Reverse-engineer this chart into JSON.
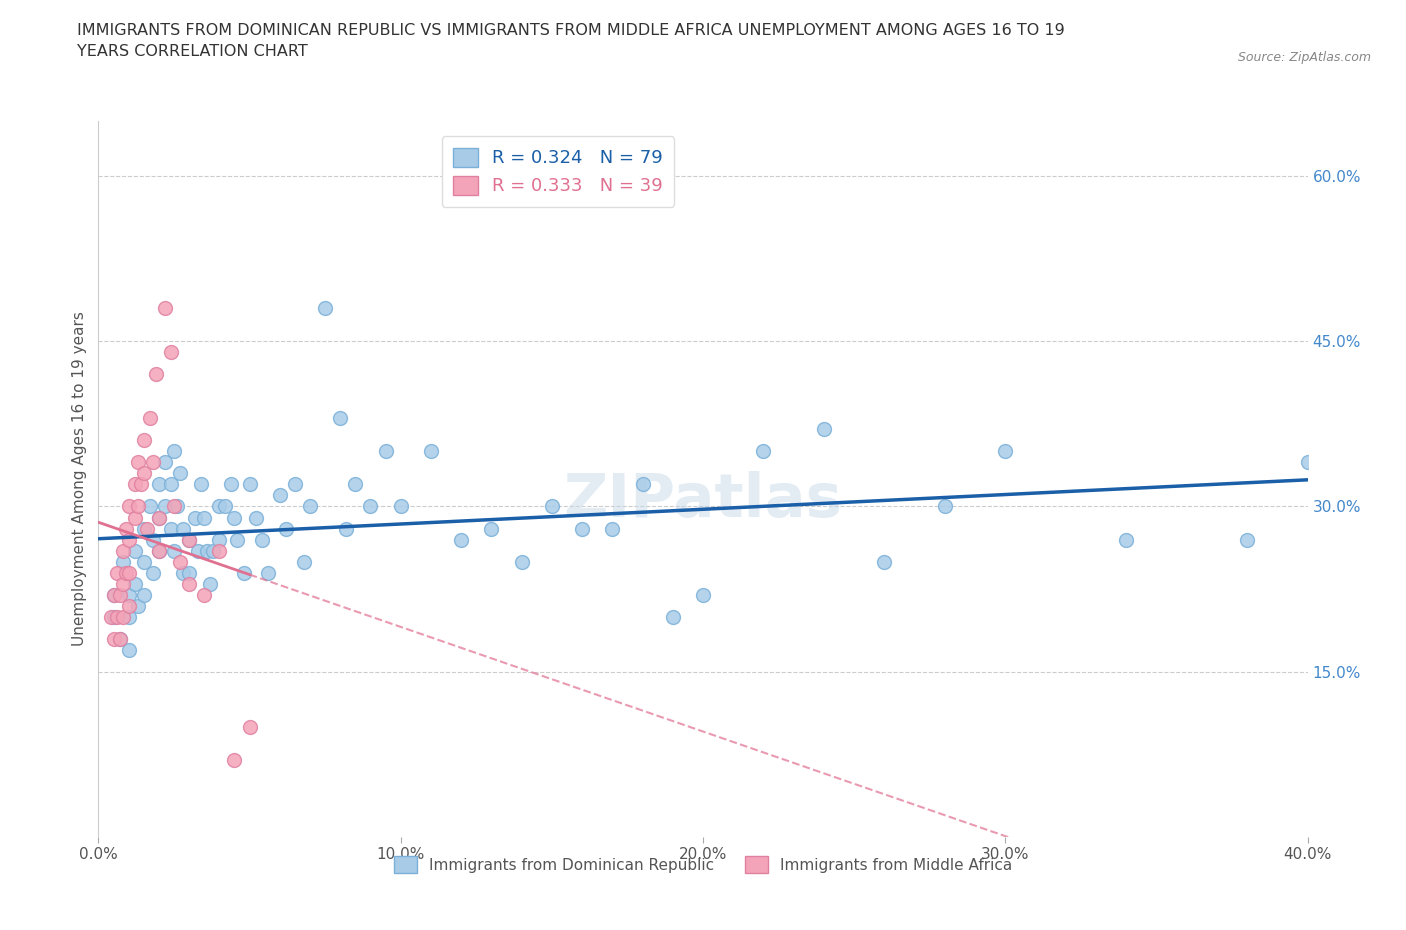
{
  "title": "IMMIGRANTS FROM DOMINICAN REPUBLIC VS IMMIGRANTS FROM MIDDLE AFRICA UNEMPLOYMENT AMONG AGES 16 TO 19\nYEARS CORRELATION CHART",
  "source": "Source: ZipAtlas.com",
  "ylabel": "Unemployment Among Ages 16 to 19 years",
  "xmin": 0.0,
  "xmax": 0.4,
  "ymin": 0.0,
  "ymax": 0.65,
  "xticks": [
    0.0,
    0.1,
    0.2,
    0.3,
    0.4
  ],
  "xtick_labels": [
    "0.0%",
    "10.0%",
    "20.0%",
    "30.0%",
    "40.0%"
  ],
  "ytick_positions": [
    0.15,
    0.3,
    0.45,
    0.6
  ],
  "ytick_labels": [
    "15.0%",
    "30.0%",
    "45.0%",
    "60.0%"
  ],
  "grid_color": "#cccccc",
  "background_color": "#ffffff",
  "watermark": "ZIPatlas",
  "legend_entry1": "R = 0.324   N = 79",
  "legend_entry2": "R = 0.333   N = 39",
  "dot_color1": "#a8cce8",
  "dot_color2": "#f4a4b8",
  "dot_edge1": "#7ab0d8",
  "dot_edge2": "#e080a0",
  "trend_color1": "#1a5fa8",
  "trend_color2": "#e07090",
  "dot_size": 100,
  "blue_x": [
    0.005,
    0.005,
    0.007,
    0.008,
    0.01,
    0.01,
    0.01,
    0.012,
    0.012,
    0.013,
    0.015,
    0.015,
    0.015,
    0.017,
    0.018,
    0.018,
    0.02,
    0.02,
    0.02,
    0.022,
    0.022,
    0.024,
    0.024,
    0.025,
    0.025,
    0.026,
    0.027,
    0.028,
    0.028,
    0.03,
    0.03,
    0.032,
    0.033,
    0.034,
    0.035,
    0.036,
    0.037,
    0.038,
    0.04,
    0.04,
    0.042,
    0.044,
    0.045,
    0.046,
    0.048,
    0.05,
    0.052,
    0.054,
    0.056,
    0.06,
    0.062,
    0.065,
    0.068,
    0.07,
    0.075,
    0.08,
    0.082,
    0.085,
    0.09,
    0.095,
    0.1,
    0.11,
    0.12,
    0.13,
    0.14,
    0.15,
    0.16,
    0.17,
    0.18,
    0.19,
    0.2,
    0.22,
    0.24,
    0.26,
    0.28,
    0.3,
    0.34,
    0.38,
    0.4
  ],
  "blue_y": [
    0.22,
    0.2,
    0.18,
    0.25,
    0.22,
    0.2,
    0.17,
    0.26,
    0.23,
    0.21,
    0.28,
    0.25,
    0.22,
    0.3,
    0.27,
    0.24,
    0.32,
    0.29,
    0.26,
    0.34,
    0.3,
    0.32,
    0.28,
    0.35,
    0.26,
    0.3,
    0.33,
    0.28,
    0.24,
    0.27,
    0.24,
    0.29,
    0.26,
    0.32,
    0.29,
    0.26,
    0.23,
    0.26,
    0.3,
    0.27,
    0.3,
    0.32,
    0.29,
    0.27,
    0.24,
    0.32,
    0.29,
    0.27,
    0.24,
    0.31,
    0.28,
    0.32,
    0.25,
    0.3,
    0.48,
    0.38,
    0.28,
    0.32,
    0.3,
    0.35,
    0.3,
    0.35,
    0.27,
    0.28,
    0.25,
    0.3,
    0.28,
    0.28,
    0.32,
    0.2,
    0.22,
    0.35,
    0.37,
    0.25,
    0.3,
    0.35,
    0.27,
    0.27,
    0.34
  ],
  "pink_x": [
    0.004,
    0.005,
    0.005,
    0.006,
    0.006,
    0.007,
    0.007,
    0.008,
    0.008,
    0.008,
    0.009,
    0.009,
    0.01,
    0.01,
    0.01,
    0.01,
    0.012,
    0.012,
    0.013,
    0.013,
    0.014,
    0.015,
    0.015,
    0.016,
    0.017,
    0.018,
    0.019,
    0.02,
    0.02,
    0.022,
    0.024,
    0.025,
    0.027,
    0.03,
    0.03,
    0.035,
    0.04,
    0.045,
    0.05
  ],
  "pink_y": [
    0.2,
    0.22,
    0.18,
    0.24,
    0.2,
    0.18,
    0.22,
    0.26,
    0.23,
    0.2,
    0.28,
    0.24,
    0.3,
    0.27,
    0.24,
    0.21,
    0.32,
    0.29,
    0.34,
    0.3,
    0.32,
    0.36,
    0.33,
    0.28,
    0.38,
    0.34,
    0.42,
    0.29,
    0.26,
    0.48,
    0.44,
    0.3,
    0.25,
    0.27,
    0.23,
    0.22,
    0.26,
    0.07,
    0.1
  ]
}
